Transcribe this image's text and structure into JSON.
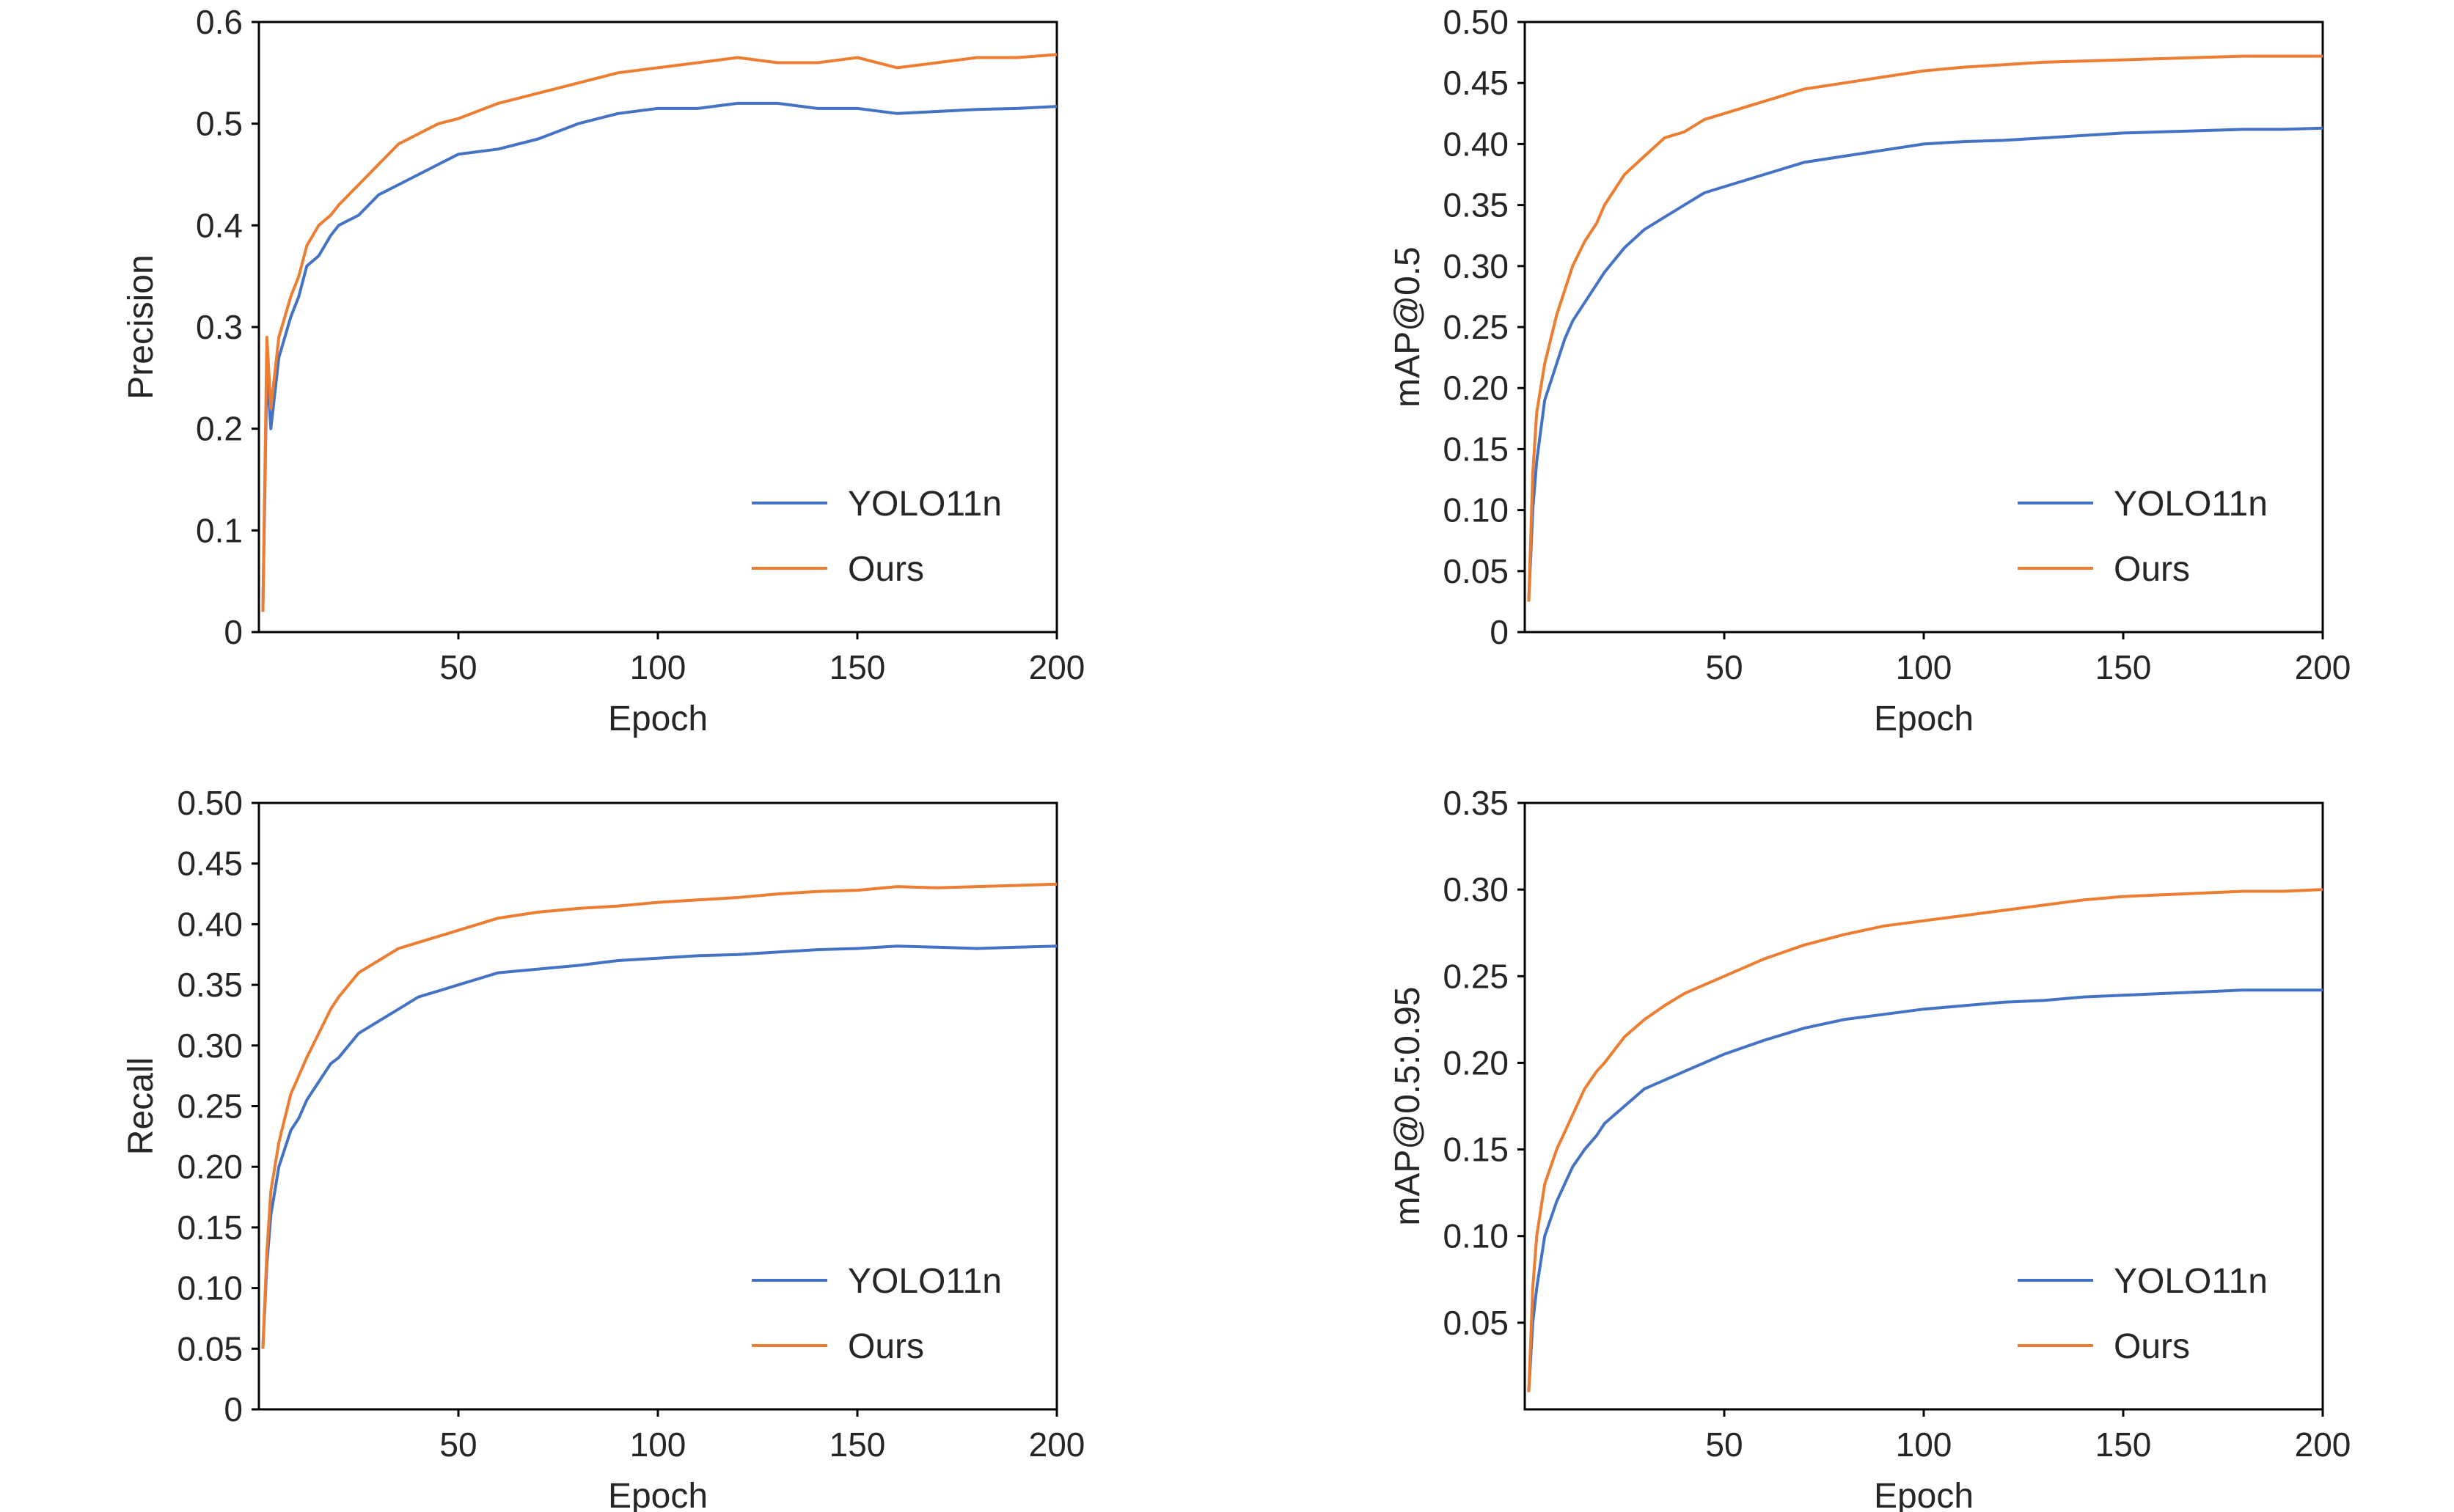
{
  "colors": {
    "YOLO11n": "#4472C4",
    "Ours": "#ED7D31",
    "axis": "#000000",
    "text": "#262626"
  },
  "chart_data": [
    {
      "type": "line",
      "xlabel": "Epoch",
      "ylabel": "Precision",
      "xlim": [
        0,
        200
      ],
      "ylim": [
        0,
        0.6
      ],
      "xticks": [
        50,
        100,
        150,
        200
      ],
      "xtick_labels": [
        "50",
        "100",
        "150",
        "200"
      ],
      "yticks": [
        0,
        0.1,
        0.2,
        0.3,
        0.4,
        0.5,
        0.6
      ],
      "ytick_labels": [
        "0",
        "0.1",
        "0.2",
        "0.3",
        "0.4",
        "0.5",
        "0.6"
      ],
      "grid": false,
      "legend_position": "bottom-right",
      "series": [
        {
          "name": "YOLO11n",
          "x": [
            1,
            2,
            3,
            5,
            8,
            10,
            12,
            15,
            18,
            20,
            25,
            30,
            35,
            40,
            45,
            50,
            60,
            70,
            80,
            90,
            100,
            110,
            120,
            130,
            140,
            150,
            160,
            170,
            180,
            190,
            200
          ],
          "y": [
            0.02,
            0.26,
            0.2,
            0.27,
            0.31,
            0.33,
            0.36,
            0.37,
            0.39,
            0.4,
            0.41,
            0.43,
            0.44,
            0.45,
            0.46,
            0.47,
            0.475,
            0.485,
            0.5,
            0.51,
            0.515,
            0.515,
            0.52,
            0.52,
            0.515,
            0.515,
            0.51,
            0.512,
            0.514,
            0.515,
            0.517
          ]
        },
        {
          "name": "Ours",
          "x": [
            1,
            2,
            3,
            5,
            8,
            10,
            12,
            15,
            18,
            20,
            25,
            30,
            35,
            40,
            45,
            50,
            60,
            70,
            80,
            90,
            100,
            110,
            120,
            130,
            140,
            150,
            160,
            170,
            180,
            190,
            200
          ],
          "y": [
            0.02,
            0.29,
            0.22,
            0.29,
            0.33,
            0.35,
            0.38,
            0.4,
            0.41,
            0.42,
            0.44,
            0.46,
            0.48,
            0.49,
            0.5,
            0.505,
            0.52,
            0.53,
            0.54,
            0.55,
            0.555,
            0.56,
            0.565,
            0.56,
            0.56,
            0.565,
            0.555,
            0.56,
            0.565,
            0.565,
            0.568
          ]
        }
      ]
    },
    {
      "type": "line",
      "xlabel": "Epoch",
      "ylabel": "mAP@0.5",
      "xlim": [
        0,
        200
      ],
      "ylim": [
        0,
        0.5
      ],
      "xticks": [
        50,
        100,
        150,
        200
      ],
      "xtick_labels": [
        "50",
        "100",
        "150",
        "200"
      ],
      "yticks": [
        0,
        0.05,
        0.1,
        0.15,
        0.2,
        0.25,
        0.3,
        0.35,
        0.4,
        0.45,
        0.5
      ],
      "ytick_labels": [
        "0",
        "0.05",
        "0.10",
        "0.15",
        "0.20",
        "0.25",
        "0.30",
        "0.35",
        "0.40",
        "0.45",
        "0.50"
      ],
      "grid": false,
      "legend_position": "bottom-right",
      "series": [
        {
          "name": "YOLO11n",
          "x": [
            1,
            2,
            3,
            5,
            8,
            10,
            12,
            15,
            18,
            20,
            25,
            30,
            35,
            40,
            45,
            50,
            60,
            70,
            80,
            90,
            100,
            110,
            120,
            130,
            140,
            150,
            160,
            170,
            180,
            190,
            200
          ],
          "y": [
            0.025,
            0.1,
            0.14,
            0.19,
            0.22,
            0.24,
            0.255,
            0.27,
            0.285,
            0.295,
            0.315,
            0.33,
            0.34,
            0.35,
            0.36,
            0.365,
            0.375,
            0.385,
            0.39,
            0.395,
            0.4,
            0.402,
            0.403,
            0.405,
            0.407,
            0.409,
            0.41,
            0.411,
            0.412,
            0.412,
            0.413
          ]
        },
        {
          "name": "Ours",
          "x": [
            1,
            2,
            3,
            5,
            8,
            10,
            12,
            15,
            18,
            20,
            25,
            30,
            35,
            40,
            45,
            50,
            60,
            70,
            80,
            90,
            100,
            110,
            120,
            130,
            140,
            150,
            160,
            170,
            180,
            190,
            200
          ],
          "y": [
            0.025,
            0.13,
            0.18,
            0.22,
            0.26,
            0.28,
            0.3,
            0.32,
            0.335,
            0.35,
            0.375,
            0.39,
            0.405,
            0.41,
            0.42,
            0.425,
            0.435,
            0.445,
            0.45,
            0.455,
            0.46,
            0.463,
            0.465,
            0.467,
            0.468,
            0.469,
            0.47,
            0.471,
            0.472,
            0.472,
            0.472
          ]
        }
      ]
    },
    {
      "type": "line",
      "xlabel": "Epoch",
      "ylabel": "Recall",
      "xlim": [
        0,
        200
      ],
      "ylim": [
        0,
        0.5
      ],
      "xticks": [
        50,
        100,
        150,
        200
      ],
      "xtick_labels": [
        "50",
        "100",
        "150",
        "200"
      ],
      "yticks": [
        0,
        0.05,
        0.1,
        0.15,
        0.2,
        0.25,
        0.3,
        0.35,
        0.4,
        0.45,
        0.5
      ],
      "ytick_labels": [
        "0",
        "0.05",
        "0.10",
        "0.15",
        "0.20",
        "0.25",
        "0.30",
        "0.35",
        "0.40",
        "0.45",
        "0.50"
      ],
      "grid": false,
      "legend_position": "bottom-right",
      "series": [
        {
          "name": "YOLO11n",
          "x": [
            1,
            2,
            3,
            5,
            8,
            10,
            12,
            15,
            18,
            20,
            25,
            30,
            35,
            40,
            45,
            50,
            60,
            70,
            80,
            90,
            100,
            110,
            120,
            130,
            140,
            150,
            160,
            170,
            180,
            190,
            200
          ],
          "y": [
            0.05,
            0.12,
            0.16,
            0.2,
            0.23,
            0.24,
            0.255,
            0.27,
            0.285,
            0.29,
            0.31,
            0.32,
            0.33,
            0.34,
            0.345,
            0.35,
            0.36,
            0.363,
            0.366,
            0.37,
            0.372,
            0.374,
            0.375,
            0.377,
            0.379,
            0.38,
            0.382,
            0.381,
            0.38,
            0.381,
            0.382
          ]
        },
        {
          "name": "Ours",
          "x": [
            1,
            2,
            3,
            5,
            8,
            10,
            12,
            15,
            18,
            20,
            25,
            30,
            35,
            40,
            45,
            50,
            60,
            70,
            80,
            90,
            100,
            110,
            120,
            130,
            140,
            150,
            160,
            170,
            180,
            190,
            200
          ],
          "y": [
            0.05,
            0.13,
            0.18,
            0.22,
            0.26,
            0.275,
            0.29,
            0.31,
            0.33,
            0.34,
            0.36,
            0.37,
            0.38,
            0.385,
            0.39,
            0.395,
            0.405,
            0.41,
            0.413,
            0.415,
            0.418,
            0.42,
            0.422,
            0.425,
            0.427,
            0.428,
            0.431,
            0.43,
            0.431,
            0.432,
            0.433
          ]
        }
      ]
    },
    {
      "type": "line",
      "xlabel": "Epoch",
      "ylabel": "mAP@0.5:0.95",
      "xlim": [
        0,
        200
      ],
      "ylim": [
        0,
        0.35
      ],
      "xticks": [
        50,
        100,
        150,
        200
      ],
      "xtick_labels": [
        "50",
        "100",
        "150",
        "200"
      ],
      "yticks": [
        0.05,
        0.1,
        0.15,
        0.2,
        0.25,
        0.3,
        0.35
      ],
      "ytick_labels": [
        "0.05",
        "0.10",
        "0.15",
        "0.20",
        "0.25",
        "0.30",
        "0.35"
      ],
      "grid": false,
      "legend_position": "bottom-right",
      "series": [
        {
          "name": "YOLO11n",
          "x": [
            1,
            2,
            3,
            5,
            8,
            10,
            12,
            15,
            18,
            20,
            25,
            30,
            35,
            40,
            45,
            50,
            60,
            70,
            80,
            90,
            100,
            110,
            120,
            130,
            140,
            150,
            160,
            170,
            180,
            190,
            200
          ],
          "y": [
            0.01,
            0.05,
            0.07,
            0.1,
            0.12,
            0.13,
            0.14,
            0.15,
            0.158,
            0.165,
            0.175,
            0.185,
            0.19,
            0.195,
            0.2,
            0.205,
            0.213,
            0.22,
            0.225,
            0.228,
            0.231,
            0.233,
            0.235,
            0.236,
            0.238,
            0.239,
            0.24,
            0.241,
            0.242,
            0.242,
            0.242
          ]
        },
        {
          "name": "Ours",
          "x": [
            1,
            2,
            3,
            5,
            8,
            10,
            12,
            15,
            18,
            20,
            25,
            30,
            35,
            40,
            45,
            50,
            60,
            70,
            80,
            90,
            100,
            110,
            120,
            130,
            140,
            150,
            160,
            170,
            180,
            190,
            200
          ],
          "y": [
            0.01,
            0.07,
            0.1,
            0.13,
            0.15,
            0.16,
            0.17,
            0.185,
            0.195,
            0.2,
            0.215,
            0.225,
            0.233,
            0.24,
            0.245,
            0.25,
            0.26,
            0.268,
            0.274,
            0.279,
            0.282,
            0.285,
            0.288,
            0.291,
            0.294,
            0.296,
            0.297,
            0.298,
            0.299,
            0.299,
            0.3
          ]
        }
      ]
    }
  ]
}
